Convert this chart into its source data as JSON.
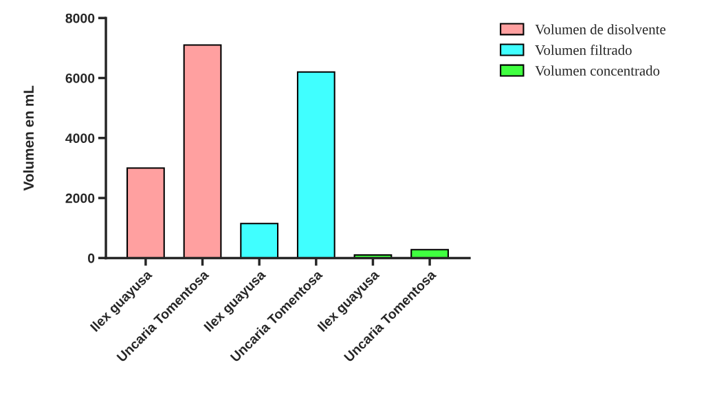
{
  "chart_data": {
    "type": "bar",
    "ylabel": "Volumen en mL",
    "categories": [
      "Ilex guayusa",
      "Uncaria Tomentosa",
      "Ilex guayusa",
      "Uncaria Tomentosa",
      "Ilex guayusa",
      "Uncaria Tomentosa"
    ],
    "series": [
      {
        "name": "Volumen de disolvente",
        "color": "#ffa0a0",
        "values": [
          3000,
          7100,
          null,
          null,
          null,
          null
        ]
      },
      {
        "name": "Volumen filtrado",
        "color": "#40ffff",
        "values": [
          null,
          null,
          1150,
          6200,
          null,
          null
        ]
      },
      {
        "name": "Volumen concentrado",
        "color": "#40ff40",
        "values": [
          null,
          null,
          null,
          null,
          100,
          280
        ]
      }
    ],
    "ylim": [
      0,
      8000
    ],
    "yticks": [
      0,
      2000,
      4000,
      6000,
      8000
    ],
    "grid": false,
    "legend": "top right"
  }
}
